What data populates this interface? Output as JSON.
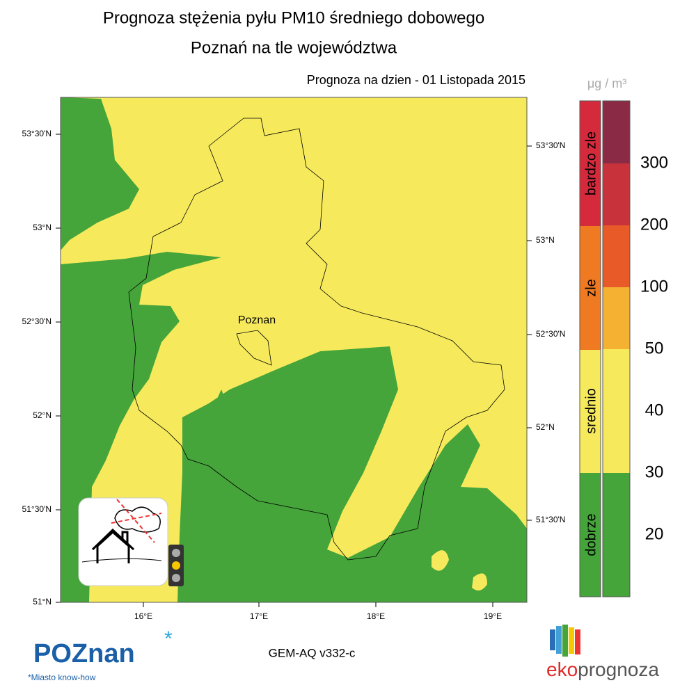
{
  "header": {
    "title": "Prognoza stężenia pyłu PM10 średniego dobowego",
    "subtitle": "Poznań na tle województwa",
    "date": "Prognoza na dzien -  01 Listopada 2015"
  },
  "map": {
    "city": "Poznan",
    "left_lat_labels": [
      "53°30'N",
      "53°N",
      "52°30'N",
      "52°N",
      "51°30'N",
      "51°N"
    ],
    "right_lat_labels": [
      "53°30'N",
      "53°N",
      "52°30'N",
      "52°N",
      "51°30'N"
    ],
    "lon_labels": [
      "16°E",
      "17°E",
      "18°E",
      "19°E"
    ]
  },
  "legend": {
    "unit": "μg / m³",
    "categories": [
      "bardzo zle",
      "zle",
      "srednio",
      "dobrze"
    ],
    "levels": [
      "300",
      "200",
      "100",
      "50",
      "40",
      "30",
      "20"
    ]
  },
  "footer": {
    "model": "GEM-AQ v332-c",
    "logo_left": "POZnan",
    "logo_left_tagline": "*Miasto know-how",
    "logo_right_a": "eko",
    "logo_right_b": "prognoza"
  }
}
